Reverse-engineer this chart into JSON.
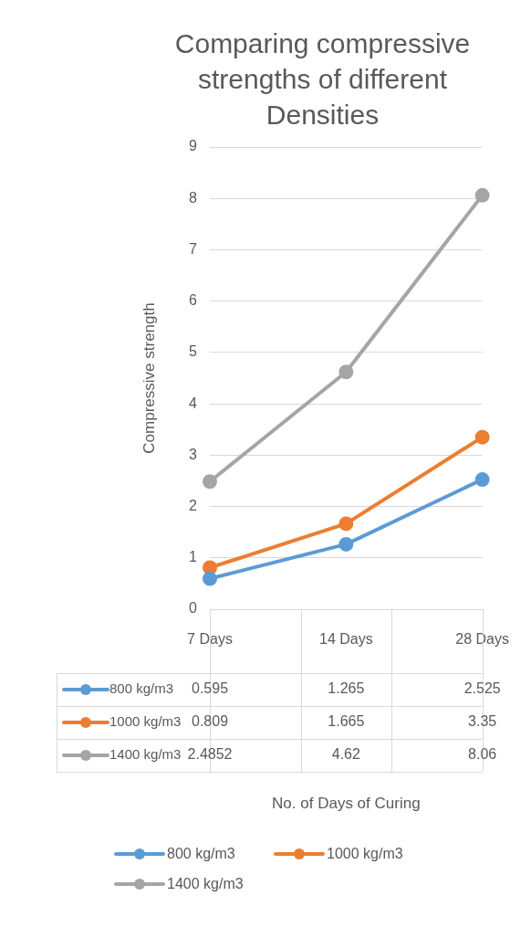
{
  "chart_data": {
    "type": "line",
    "title": "Comparing compressive strengths of different Densities",
    "annotations": [
      "No. of Days of Curing"
    ],
    "ylabel": "Compressive strength",
    "categories": [
      "7 Days",
      "14 Days",
      "28 Days"
    ],
    "series": [
      {
        "name": "800 kg/m3",
        "color": "#5b9bd5",
        "values": [
          0.595,
          1.265,
          2.525
        ]
      },
      {
        "name": "1000 kg/m3",
        "color": "#ed7d31",
        "values": [
          0.809,
          1.665,
          3.35
        ]
      },
      {
        "name": "1400 kg/m3",
        "color": "#a5a5a5",
        "values": [
          2.4852,
          4.62,
          8.06
        ]
      }
    ],
    "ylim": [
      0,
      9
    ],
    "yticks": [
      0,
      1,
      2,
      3,
      4,
      5,
      6,
      7,
      8,
      9
    ],
    "grid": "y",
    "legend": "bottom",
    "marker": "circle",
    "data_labels": true
  }
}
